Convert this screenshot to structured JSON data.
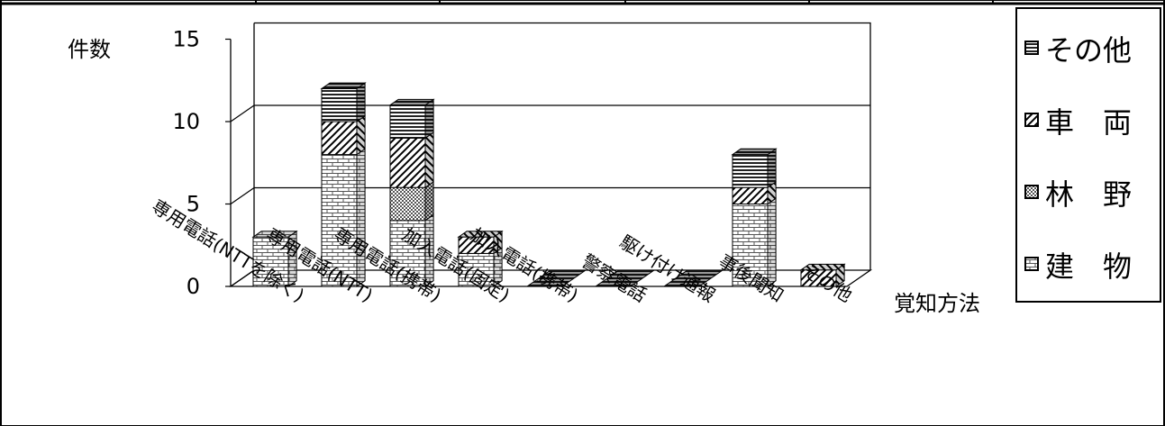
{
  "chart_data": {
    "type": "bar",
    "stacked": true,
    "three_d": true,
    "ylabel": "件数",
    "xlabel": "覚知方法",
    "ylim": [
      0,
      15
    ],
    "yticks": [
      0,
      5,
      10,
      15
    ],
    "grid": true,
    "legend_position": "right",
    "categories": [
      "専用電話(NTTを除く)",
      "専用電話(NTT)",
      "専用電話(携帯)",
      "加入電話(固定)",
      "加入電話(携帯)",
      "警察電話",
      "駆け付け通報",
      "事後聞知",
      "その他"
    ],
    "series": [
      {
        "name": "建　物",
        "pattern": "brick",
        "values": [
          3,
          8,
          4,
          2,
          0,
          0,
          0,
          5,
          0
        ]
      },
      {
        "name": "林　野",
        "pattern": "checker",
        "values": [
          0,
          0,
          2,
          0,
          0,
          0,
          0,
          0,
          0
        ]
      },
      {
        "name": "車　両",
        "pattern": "diagonal",
        "values": [
          0,
          2,
          3,
          1,
          0,
          0,
          0,
          1,
          1
        ]
      },
      {
        "name": "その他",
        "pattern": "horizontal",
        "values": [
          0,
          2,
          2,
          0,
          0,
          0,
          0,
          2,
          0
        ]
      }
    ],
    "legend_order": [
      "その他",
      "車　両",
      "林　野",
      "建　物"
    ]
  }
}
